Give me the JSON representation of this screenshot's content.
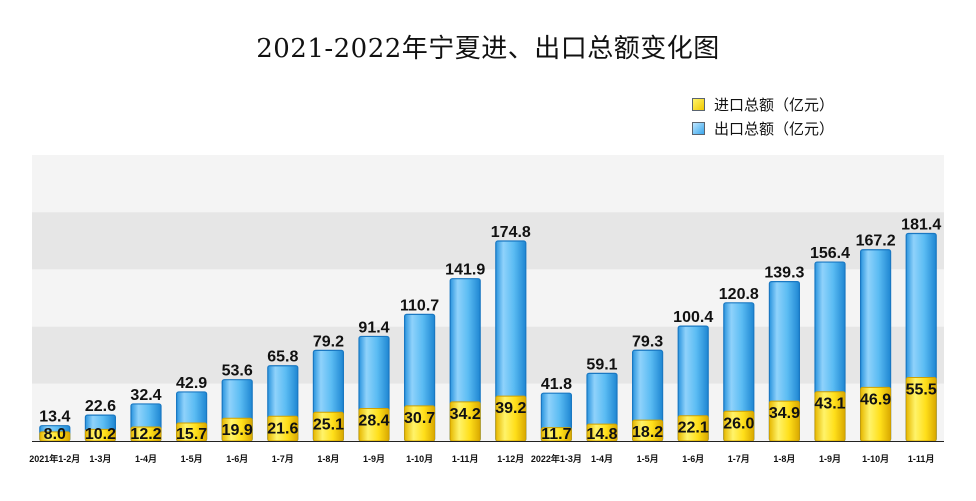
{
  "chart_data": {
    "type": "bar",
    "stacked": false,
    "overlapping": true,
    "title": "2021-2022年宁夏进、出口总额变化图",
    "xlabel": "",
    "ylabel": "",
    "ylim": [
      0,
      250
    ],
    "grid": true,
    "legend_position": "top-right",
    "categories": [
      "2021年1-2月",
      "1-3月",
      "1-4月",
      "1-5月",
      "1-6月",
      "1-7月",
      "1-8月",
      "1-9月",
      "1-10月",
      "1-11月",
      "1-12月",
      "2022年1-3月",
      "1-4月",
      "1-5月",
      "1-6月",
      "1-7月",
      "1-8月",
      "1-9月",
      "1-10月",
      "1-11月"
    ],
    "series": [
      {
        "name": "进口总额（亿元）",
        "color": "#f5d000",
        "values": [
          8.0,
          10.2,
          12.2,
          15.7,
          19.9,
          21.6,
          25.1,
          28.4,
          30.7,
          34.2,
          39.2,
          11.7,
          14.8,
          18.2,
          22.1,
          26.0,
          34.9,
          43.1,
          46.9,
          55.5
        ]
      },
      {
        "name": "出口总额（亿元）",
        "color": "#4db0f0",
        "values": [
          13.4,
          22.6,
          32.4,
          42.9,
          53.6,
          65.8,
          79.2,
          91.4,
          110.7,
          141.9,
          174.8,
          41.8,
          59.1,
          79.3,
          100.4,
          120.8,
          139.3,
          156.4,
          167.2,
          181.4
        ]
      }
    ]
  }
}
